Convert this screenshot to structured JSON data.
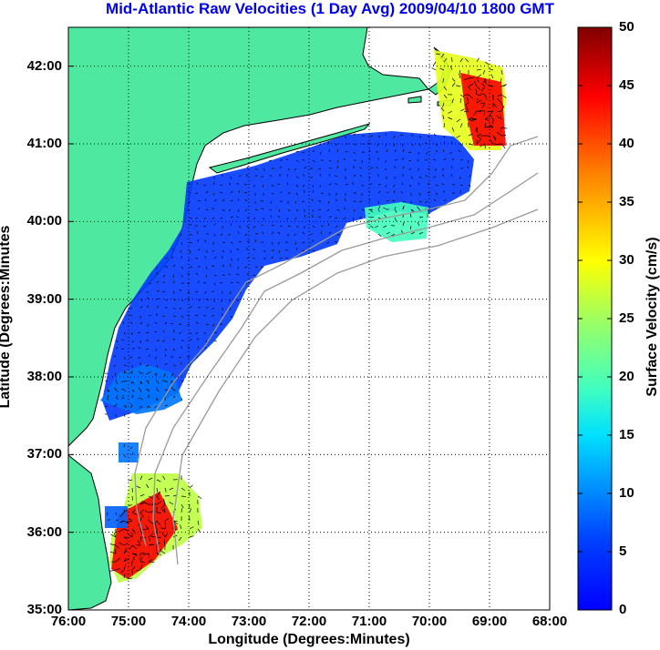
{
  "title": "Mid-Atlantic Raw Velocities (1 Day Avg) 2009/04/10 1800 GMT",
  "xaxis": {
    "label": "Longitude (Degrees:Minutes)",
    "ticks": [
      "76:00",
      "75:00",
      "74:00",
      "73:00",
      "72:00",
      "71:00",
      "70:00",
      "69:00",
      "68:00"
    ]
  },
  "yaxis": {
    "label": "Latitude (Degrees:Minutes",
    "ticks": [
      "42:00",
      "41:00",
      "40:00",
      "39:00",
      "38:00",
      "37:00",
      "36:00",
      "35:00"
    ]
  },
  "colorbar": {
    "label": "Surface Velocity (cm/s)",
    "ticks": [
      "50",
      "45",
      "40",
      "35",
      "30",
      "25",
      "20",
      "15",
      "10",
      "5",
      "0"
    ],
    "min": 0,
    "max": 50,
    "colormap": "jet"
  },
  "map": {
    "lon_range": [
      -76,
      -68
    ],
    "lat_range": [
      35,
      42.5
    ],
    "land_color": "#4fe8a0",
    "water_color": "#ffffff",
    "bathymetry_color": "#9a9a9a",
    "grid": "dotted"
  },
  "colors": {
    "title": "#0000ee"
  }
}
